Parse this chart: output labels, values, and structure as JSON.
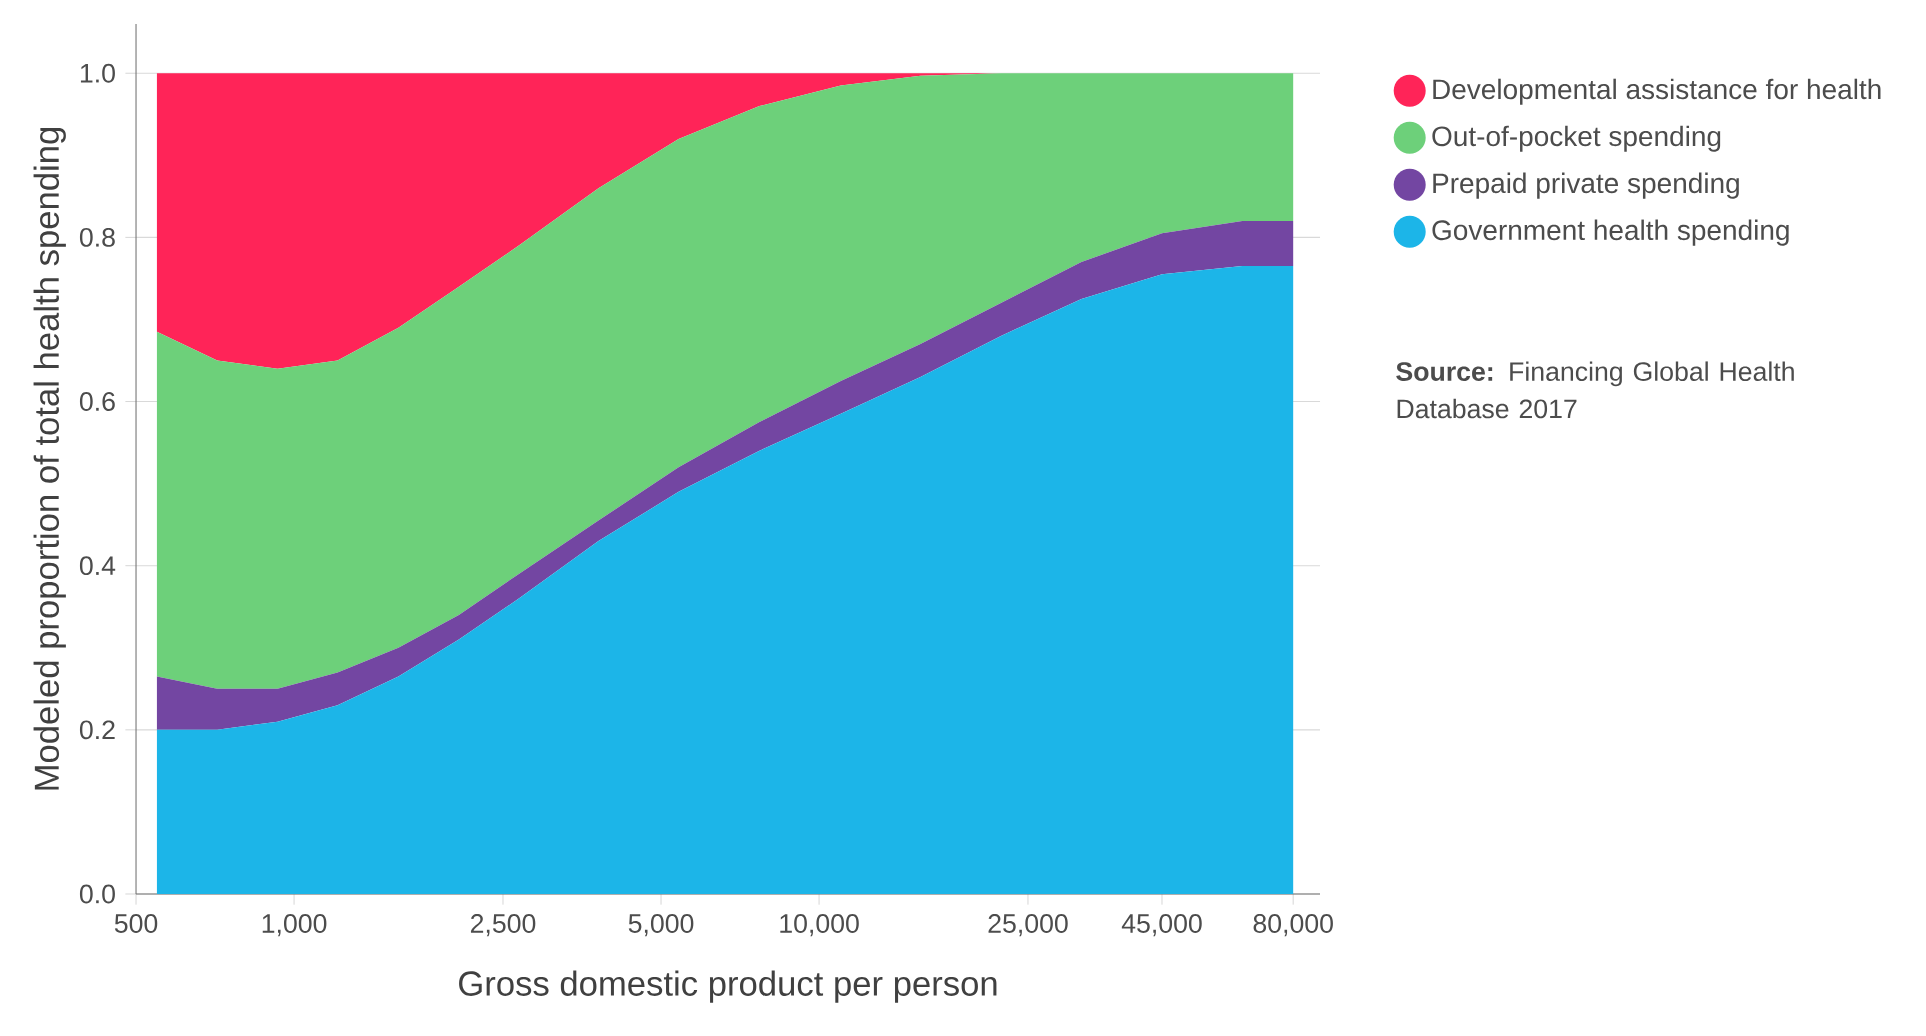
{
  "chart_data": {
    "type": "area",
    "stacked": true,
    "log": "x",
    "xlabel": "Gross domestic product per person",
    "ylabel": "Modeled proportion of total health spending",
    "x": [
      548,
      714,
      930,
      1210,
      1580,
      2060,
      2680,
      3800,
      5400,
      7700,
      11000,
      15600,
      22200,
      31600,
      45000,
      64000,
      80000
    ],
    "series": [
      {
        "name": "Government health spending",
        "color": "#1cb5e8",
        "values": [
          0.2,
          0.2,
          0.21,
          0.23,
          0.265,
          0.31,
          0.36,
          0.43,
          0.49,
          0.54,
          0.585,
          0.63,
          0.68,
          0.725,
          0.755,
          0.765,
          0.765
        ]
      },
      {
        "name": "Prepaid private spending",
        "color": "#7346a2",
        "values": [
          0.065,
          0.05,
          0.04,
          0.04,
          0.035,
          0.03,
          0.03,
          0.025,
          0.03,
          0.035,
          0.04,
          0.04,
          0.04,
          0.045,
          0.05,
          0.055,
          0.055
        ]
      },
      {
        "name": "Out-of-pocket spending",
        "color": "#6dd07a",
        "values": [
          0.42,
          0.4,
          0.39,
          0.38,
          0.39,
          0.4,
          0.4,
          0.405,
          0.4,
          0.385,
          0.36,
          0.327,
          0.28,
          0.23,
          0.195,
          0.18,
          0.18
        ]
      },
      {
        "name": "Developmental assistance for health",
        "color": "#ff2458",
        "values": [
          0.315,
          0.35,
          0.36,
          0.35,
          0.31,
          0.26,
          0.21,
          0.14,
          0.08,
          0.04,
          0.015,
          0.003,
          0,
          0,
          0,
          0,
          0
        ]
      }
    ],
    "xlim": [
      500,
      90000
    ],
    "xticks": [
      {
        "value": 500,
        "label": "500"
      },
      {
        "value": 1000,
        "label": "1,000"
      },
      {
        "value": 2500,
        "label": "2,500"
      },
      {
        "value": 5000,
        "label": "5,000"
      },
      {
        "value": 10000,
        "label": "10,000"
      },
      {
        "value": 25000,
        "label": "25,000"
      },
      {
        "value": 45000,
        "label": "45,000"
      },
      {
        "value": 80000,
        "label": "80,000"
      }
    ],
    "ylim": [
      0,
      1.06
    ],
    "yticks": [
      {
        "value": 0,
        "label": "0.0"
      },
      {
        "value": 0.2,
        "label": "0.2"
      },
      {
        "value": 0.4,
        "label": "0.4"
      },
      {
        "value": 0.6,
        "label": "0.6"
      },
      {
        "value": 0.8,
        "label": "0.8"
      },
      {
        "value": 1,
        "label": "1.0"
      }
    ],
    "grid": "y",
    "legend": "right",
    "annotations": [
      "**Source:** Financing Global Health Database 2017"
    ]
  }
}
